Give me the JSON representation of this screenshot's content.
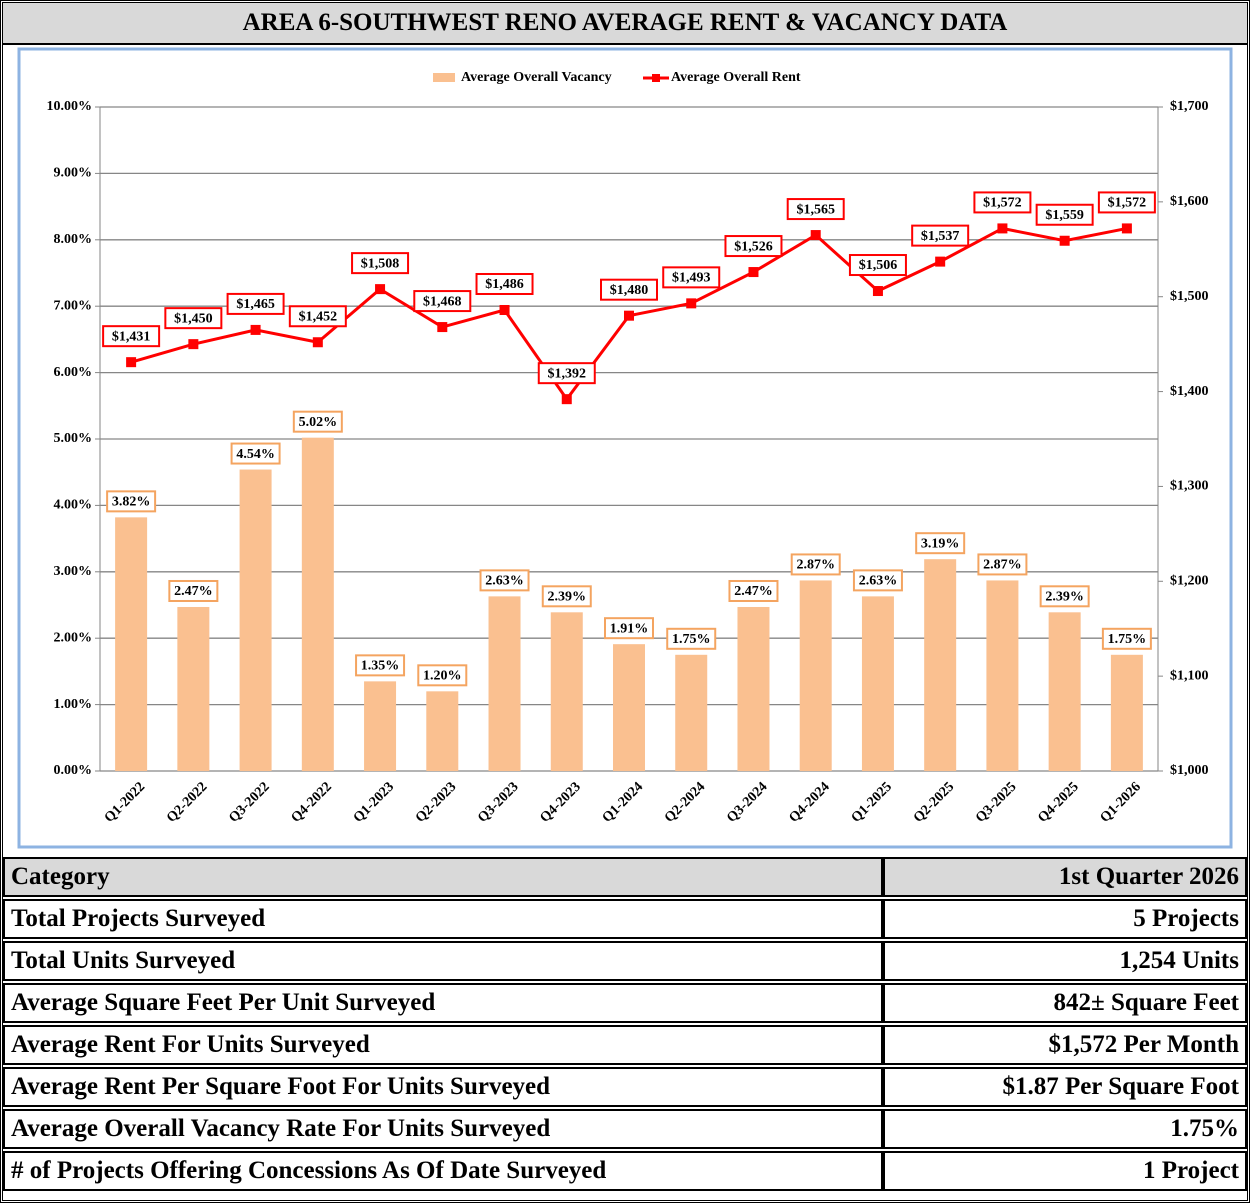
{
  "chart_data": {
    "type": "bar-line",
    "title": "AREA 6-SOUTHWEST RENO AVERAGE RENT & VACANCY DATA",
    "categories": [
      "Q1-2022",
      "Q2-2022",
      "Q3-2022",
      "Q4-2022",
      "Q1-2023",
      "Q2-2023",
      "Q3-2023",
      "Q4-2023",
      "Q1-2024",
      "Q2-2024",
      "Q3-2024",
      "Q4-2024",
      "Q1-2025",
      "Q2-2025",
      "Q3-2025",
      "Q4-2025",
      "Q1-2026"
    ],
    "series": [
      {
        "name": "Average Overall Vacancy",
        "type": "bar",
        "color": "#fac090",
        "label_border": "#f4a460",
        "values": [
          3.82,
          2.47,
          4.54,
          5.02,
          1.35,
          1.2,
          2.63,
          2.39,
          1.91,
          1.75,
          2.47,
          2.87,
          2.63,
          3.19,
          2.87,
          2.39,
          1.75
        ],
        "value_labels": [
          "3.82%",
          "2.47%",
          "4.54%",
          "5.02%",
          "1.35%",
          "1.20%",
          "2.63%",
          "2.39%",
          "1.91%",
          "1.75%",
          "2.47%",
          "2.87%",
          "2.63%",
          "3.19%",
          "2.87%",
          "2.39%",
          "1.75%"
        ]
      },
      {
        "name": "Average Overall Rent",
        "type": "line",
        "axis": "y2",
        "color": "#ff0000",
        "label_border": "#ff0000",
        "values": [
          1431,
          1450,
          1465,
          1452,
          1508,
          1468,
          1486,
          1392,
          1480,
          1493,
          1526,
          1565,
          1506,
          1537,
          1572,
          1559,
          1572
        ],
        "value_labels": [
          "$1,431",
          "$1,450",
          "$1,465",
          "$1,452",
          "$1,508",
          "$1,468",
          "$1,486",
          "$1,392",
          "$1,480",
          "$1,493",
          "$1,526",
          "$1,565",
          "$1,506",
          "$1,537",
          "$1,572",
          "$1,559",
          "$1,572"
        ]
      }
    ],
    "ylim": [
      0,
      10
    ],
    "yticks": [
      {
        "value": 0,
        "label": "0.00%"
      },
      {
        "value": 1,
        "label": "1.00%"
      },
      {
        "value": 2,
        "label": "2.00%"
      },
      {
        "value": 3,
        "label": "3.00%"
      },
      {
        "value": 4,
        "label": "4.00%"
      },
      {
        "value": 5,
        "label": "5.00%"
      },
      {
        "value": 6,
        "label": "6.00%"
      },
      {
        "value": 7,
        "label": "7.00%"
      },
      {
        "value": 8,
        "label": "8.00%"
      },
      {
        "value": 9,
        "label": "9.00%"
      },
      {
        "value": 10,
        "label": "10.00%"
      }
    ],
    "y2lim": [
      1000,
      1700
    ],
    "y2ticks": [
      {
        "value": 1000,
        "label": "$1,000"
      },
      {
        "value": 1100,
        "label": "$1,100"
      },
      {
        "value": 1200,
        "label": "$1,200"
      },
      {
        "value": 1300,
        "label": "$1,300"
      },
      {
        "value": 1400,
        "label": "$1,400"
      },
      {
        "value": 1500,
        "label": "$1,500"
      },
      {
        "value": 1600,
        "label": "$1,600"
      },
      {
        "value": 1700,
        "label": "$1,700"
      }
    ],
    "grid": true,
    "legend": "top"
  },
  "table": {
    "header": [
      "Category",
      "1st Quarter 2026"
    ],
    "rows": [
      [
        "Total Projects Surveyed",
        "5 Projects"
      ],
      [
        "Total Units Surveyed",
        "1,254 Units"
      ],
      [
        "Average Square Feet Per Unit Surveyed",
        "842± Square Feet"
      ],
      [
        "Average Rent For Units Surveyed",
        "$1,572 Per Month"
      ],
      [
        "Average Rent Per Square Foot For Units Surveyed",
        "$1.87 Per Square Foot"
      ],
      [
        "Average Overall Vacancy Rate For Units Surveyed",
        "1.75%"
      ],
      [
        "# of Projects Offering Concessions As Of Date Surveyed",
        "1 Project"
      ]
    ]
  }
}
